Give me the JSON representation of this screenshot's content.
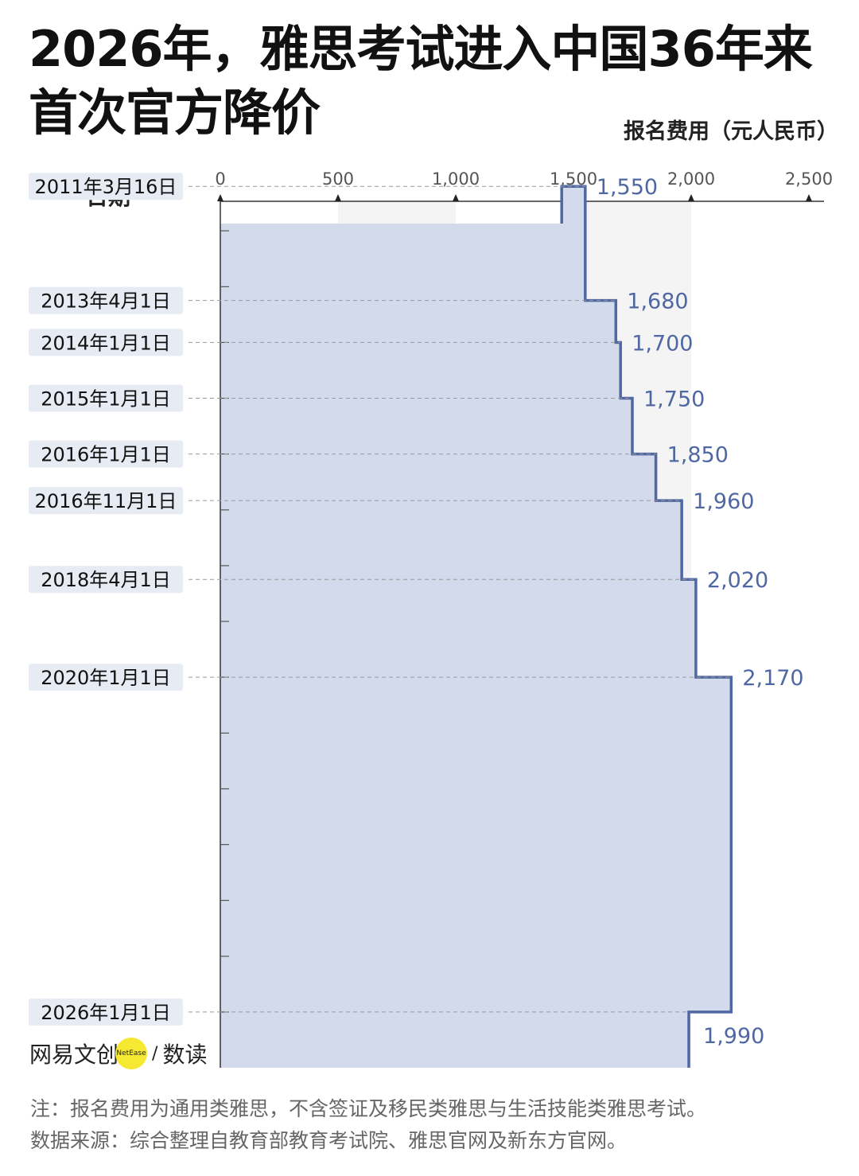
{
  "title": {
    "line1": "2026年，雅思考试进入中国36年来",
    "line2": "首次官方降价"
  },
  "unit_label": "报名费用（元人民币）",
  "date_header": "日期",
  "brand": {
    "name": "网易文创",
    "badge": "NetEase",
    "separator": "/",
    "column": "数读"
  },
  "notes": {
    "note": "注：报名费用为通用类雅思，不含签证及移民类雅思与生活技能类雅思考试。",
    "source": "数据来源：综合整理自教育部教育考试院、雅思官网及新东方官网。"
  },
  "colors": {
    "line": "#4f67a3",
    "fill": "#d3daec",
    "band": "#f4f4f4",
    "label_bg": "#e7ebf4",
    "value_text": "#4f67a3"
  },
  "chart_data": {
    "type": "area",
    "orientation": "vertical-time",
    "xlim": [
      0,
      2500
    ],
    "x_ticks": [
      "0",
      "500",
      "1,000",
      "1,500",
      "2,000",
      "2,500"
    ],
    "x_tick_values": [
      0,
      500,
      1000,
      1500,
      2000,
      2500
    ],
    "time_range": [
      "2011-01-01",
      "2027-01-01"
    ],
    "step": true,
    "points": [
      {
        "date": "2011-03-16",
        "label": "2011年3月16日",
        "value": 1550,
        "value_label": "1,550",
        "prev": 1450
      },
      {
        "date": "2013-04-01",
        "label": "2013年4月1日",
        "value": 1680,
        "value_label": "1,680"
      },
      {
        "date": "2014-01-01",
        "label": "2014年1月1日",
        "value": 1700,
        "value_label": "1,700"
      },
      {
        "date": "2015-01-01",
        "label": "2015年1月1日",
        "value": 1750,
        "value_label": "1,750"
      },
      {
        "date": "2016-01-01",
        "label": "2016年1月1日",
        "value": 1850,
        "value_label": "1,850"
      },
      {
        "date": "2016-11-01",
        "label": "2016年11月1日",
        "value": 1960,
        "value_label": "1,960"
      },
      {
        "date": "2018-04-01",
        "label": "2018年4月1日",
        "value": 2020,
        "value_label": "2,020"
      },
      {
        "date": "2020-01-01",
        "label": "2020年1月1日",
        "value": 2170,
        "value_label": "2,170"
      },
      {
        "date": "2026-01-01",
        "label": "2026年1月1日",
        "value": 1990,
        "value_label": "1,990"
      }
    ]
  }
}
